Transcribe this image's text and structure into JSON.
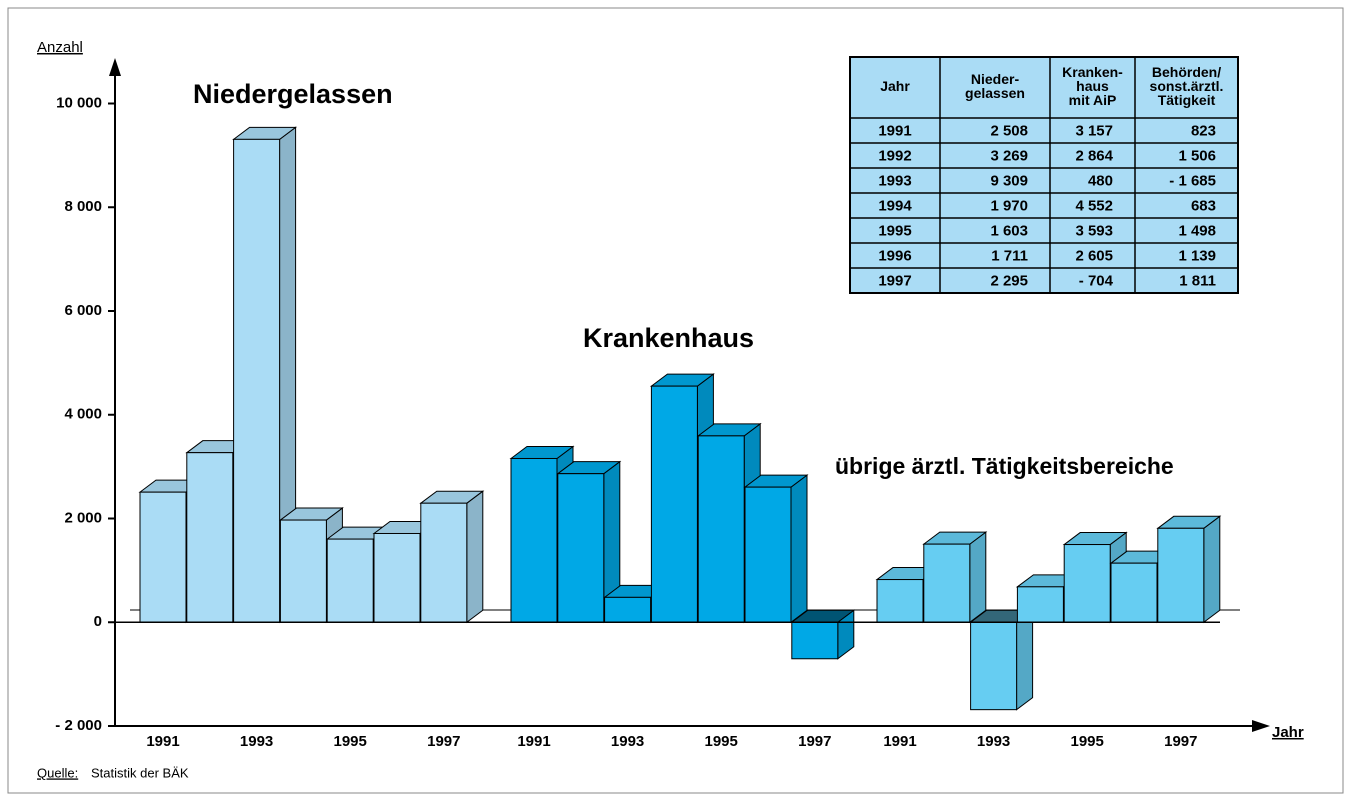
{
  "chart_data": {
    "type": "bar3d",
    "y_label": "Anzahl",
    "x_label": "Jahr",
    "source_label": "Quelle:",
    "source": "Statistik der BÄK",
    "categories": [
      "1991",
      null,
      "1993",
      null,
      "1995",
      null,
      "1997"
    ],
    "ylim": [
      -2000,
      10800
    ],
    "yticks": [
      {
        "value": -2000,
        "label": "- 2 000"
      },
      0,
      {
        "value": 2000,
        "label": "2 000"
      },
      {
        "value": 4000,
        "label": "4 000"
      },
      {
        "value": 6000,
        "label": "6 000"
      },
      {
        "value": 8000,
        "label": "8 000"
      },
      {
        "value": 10000,
        "label": "10 000"
      }
    ],
    "series": [
      {
        "name": "Niedergelassen",
        "color": "#aadcf5",
        "values": [
          2508,
          3269,
          9309,
          1970,
          1603,
          1711,
          2295
        ],
        "value_labels": [
          "2 508",
          "3 269",
          "9 309",
          "1 970",
          "1 603",
          "1 711",
          "2 295"
        ]
      },
      {
        "name": "Krankenhaus",
        "color": "#00a8e6",
        "values": [
          3157,
          2864,
          480,
          4552,
          3593,
          2605,
          -704
        ],
        "value_labels": [
          "3 157",
          "2 864",
          "480",
          "4 552",
          "3 593",
          "2 605",
          "- 704"
        ]
      },
      {
        "name": "übrige ärztl. Tätigkeitsbereiche",
        "color": "#66cdf2",
        "values": [
          823,
          1506,
          -1685,
          683,
          1498,
          1139,
          1811
        ],
        "value_labels": [
          "823",
          "1 506",
          "- 1 685",
          "683",
          "1 498",
          "1 139",
          "1 811"
        ]
      }
    ]
  },
  "table": {
    "header": [
      [
        "Jahr"
      ],
      [
        "Nieder-",
        "gelassen"
      ],
      [
        "Kranken-",
        "haus",
        "mit AiP"
      ],
      [
        "Behörden/",
        "sonst.ärztl.",
        "Tätigkeit"
      ]
    ],
    "years": [
      "1991",
      "1992",
      "1993",
      "1994",
      "1995",
      "1996",
      "1997"
    ]
  }
}
